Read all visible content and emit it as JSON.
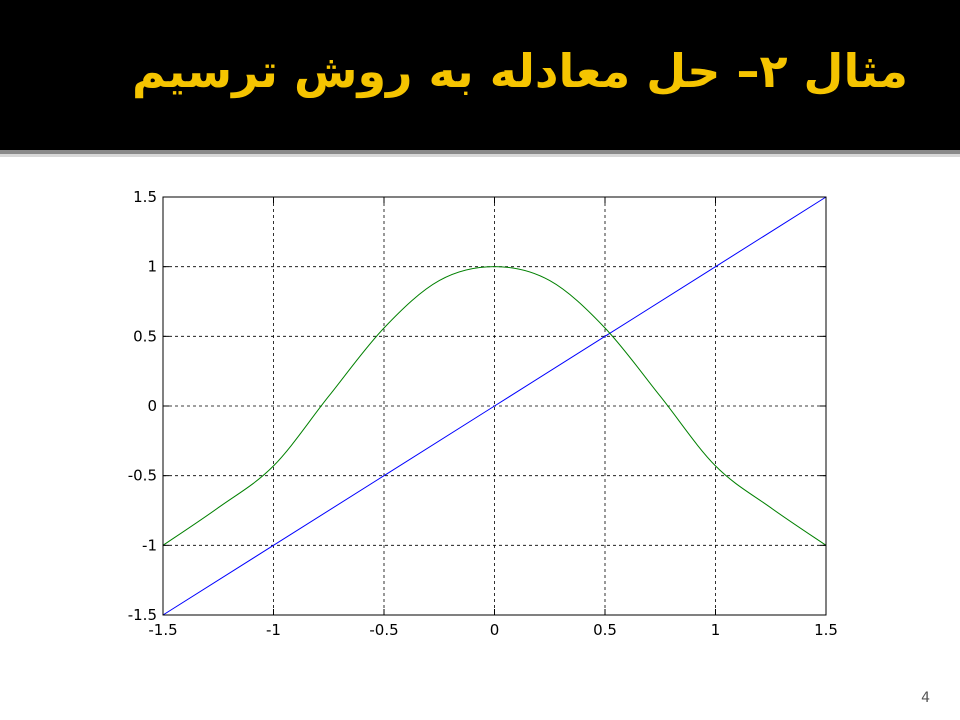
{
  "slide": {
    "title": "مثال ۲– حل معادله به روش ترسیم",
    "page_number": "4"
  },
  "colors": {
    "title_bar": "#000000",
    "title_text": "#f5c400",
    "series_linear": "#0000ff",
    "series_cos": "#008000"
  },
  "chart_data": {
    "type": "line",
    "title": "",
    "xlabel": "",
    "ylabel": "",
    "xlim": [
      -1.5,
      1.5
    ],
    "ylim": [
      -1.5,
      1.5
    ],
    "grid": true,
    "grid_style": "dashed",
    "x_ticks": [
      -1.5,
      -1,
      -0.5,
      0,
      0.5,
      1,
      1.5
    ],
    "y_ticks": [
      -1.5,
      -1,
      -0.5,
      0,
      0.5,
      1,
      1.5
    ],
    "x_tick_labels": [
      "-1.5",
      "-1",
      "-0.5",
      "0",
      "0.5",
      "1",
      "1.5"
    ],
    "y_tick_labels": [
      "-1.5",
      "-1",
      "-0.5",
      "0",
      "0.5",
      "1",
      "1.5"
    ],
    "series": [
      {
        "color": "#0000ff",
        "x": [
          -1.5,
          -1,
          -0.5,
          0,
          0.5,
          1,
          1.5
        ],
        "y": [
          -1.5,
          -1,
          -0.5,
          0,
          0.5,
          1,
          1.5
        ]
      },
      {
        "color": "#008000",
        "x": [
          -1.5,
          -1.25,
          -1,
          -0.75,
          -0.5,
          -0.25,
          0,
          0.25,
          0.5,
          0.75,
          1,
          1.25,
          1.5
        ],
        "y": [
          -1,
          -0.73,
          -0.43,
          0.07,
          0.56,
          0.9,
          1,
          0.9,
          0.56,
          0.07,
          -0.43,
          -0.73,
          -1
        ]
      }
    ]
  }
}
